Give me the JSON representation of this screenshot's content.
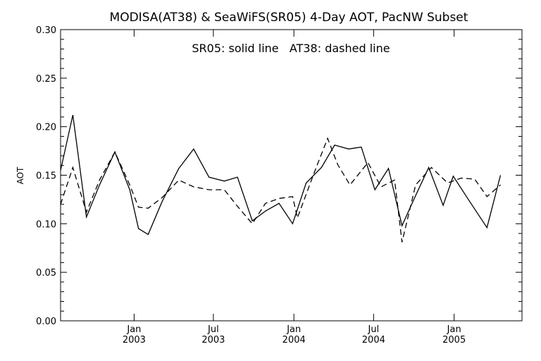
{
  "chart_data": {
    "type": "line",
    "title": "MODISA(AT38) & SeaWiFS(SR05) 4-Day AOT, PacNW Subset",
    "annotation": "SR05: solid line   AT38: dashed line",
    "xlabel": "",
    "ylabel": "AOT",
    "ylim": [
      0.0,
      0.3
    ],
    "yticks": [
      "0.00",
      "0.05",
      "0.10",
      "0.15",
      "0.20",
      "0.25",
      "0.30"
    ],
    "xlim": [
      "2002-07-17",
      "2005-06-05"
    ],
    "xticks": [
      {
        "date": "2003-01-01",
        "line1": "Jan",
        "line2": "2003"
      },
      {
        "date": "2003-07-01",
        "line1": "Jul",
        "line2": "2003"
      },
      {
        "date": "2004-01-01",
        "line1": "Jan",
        "line2": "2004"
      },
      {
        "date": "2004-07-01",
        "line1": "Jul",
        "line2": "2004"
      },
      {
        "date": "2005-01-01",
        "line1": "Jan",
        "line2": "2005"
      }
    ],
    "grid": false,
    "series": [
      {
        "name": "SR05",
        "style": "solid",
        "color": "#000000",
        "points": [
          [
            "2002-07-17",
            0.155
          ],
          [
            "2002-08-14",
            0.212
          ],
          [
            "2002-09-14",
            0.107
          ],
          [
            "2002-10-14",
            0.14
          ],
          [
            "2002-11-18",
            0.174
          ],
          [
            "2002-12-22",
            0.135
          ],
          [
            "2003-01-11",
            0.095
          ],
          [
            "2003-02-02",
            0.089
          ],
          [
            "2003-03-06",
            0.123
          ],
          [
            "2003-04-13",
            0.157
          ],
          [
            "2003-05-17",
            0.177
          ],
          [
            "2003-06-21",
            0.148
          ],
          [
            "2003-07-26",
            0.144
          ],
          [
            "2003-08-25",
            0.148
          ],
          [
            "2003-09-28",
            0.103
          ],
          [
            "2003-10-28",
            0.113
          ],
          [
            "2003-11-28",
            0.121
          ],
          [
            "2003-12-29",
            0.1
          ],
          [
            "2004-01-29",
            0.142
          ],
          [
            "2004-03-04",
            0.158
          ],
          [
            "2004-04-03",
            0.181
          ],
          [
            "2004-05-05",
            0.177
          ],
          [
            "2004-06-03",
            0.179
          ],
          [
            "2004-07-04",
            0.135
          ],
          [
            "2004-08-04",
            0.157
          ],
          [
            "2004-09-04",
            0.098
          ],
          [
            "2004-10-05",
            0.129
          ],
          [
            "2004-11-04",
            0.158
          ],
          [
            "2004-12-07",
            0.119
          ],
          [
            "2004-12-30",
            0.149
          ],
          [
            "2005-02-04",
            0.124
          ],
          [
            "2005-03-17",
            0.096
          ],
          [
            "2005-04-17",
            0.15
          ]
        ]
      },
      {
        "name": "AT38",
        "style": "dashed",
        "color": "#000000",
        "points": [
          [
            "2002-07-17",
            0.12
          ],
          [
            "2002-08-14",
            0.158
          ],
          [
            "2002-09-14",
            0.112
          ],
          [
            "2002-10-14",
            0.145
          ],
          [
            "2002-11-18",
            0.174
          ],
          [
            "2002-12-22",
            0.14
          ],
          [
            "2003-01-11",
            0.117
          ],
          [
            "2003-02-02",
            0.116
          ],
          [
            "2003-03-06",
            0.127
          ],
          [
            "2003-04-13",
            0.145
          ],
          [
            "2003-05-17",
            0.138
          ],
          [
            "2003-06-21",
            0.135
          ],
          [
            "2003-07-26",
            0.135
          ],
          [
            "2003-08-25",
            0.118
          ],
          [
            "2003-09-28",
            0.1
          ],
          [
            "2003-10-28",
            0.121
          ],
          [
            "2003-11-28",
            0.126
          ],
          [
            "2003-12-29",
            0.128
          ],
          [
            "2004-01-09",
            0.106
          ],
          [
            "2004-02-15",
            0.151
          ],
          [
            "2004-03-18",
            0.188
          ],
          [
            "2004-04-10",
            0.161
          ],
          [
            "2004-05-08",
            0.14
          ],
          [
            "2004-06-18",
            0.163
          ],
          [
            "2004-07-18",
            0.138
          ],
          [
            "2004-08-18",
            0.145
          ],
          [
            "2004-09-04",
            0.081
          ],
          [
            "2004-10-05",
            0.14
          ],
          [
            "2004-11-10",
            0.158
          ],
          [
            "2004-12-17",
            0.142
          ],
          [
            "2005-01-17",
            0.147
          ],
          [
            "2005-02-17",
            0.146
          ],
          [
            "2005-03-17",
            0.128
          ],
          [
            "2005-04-17",
            0.14
          ]
        ]
      }
    ]
  }
}
